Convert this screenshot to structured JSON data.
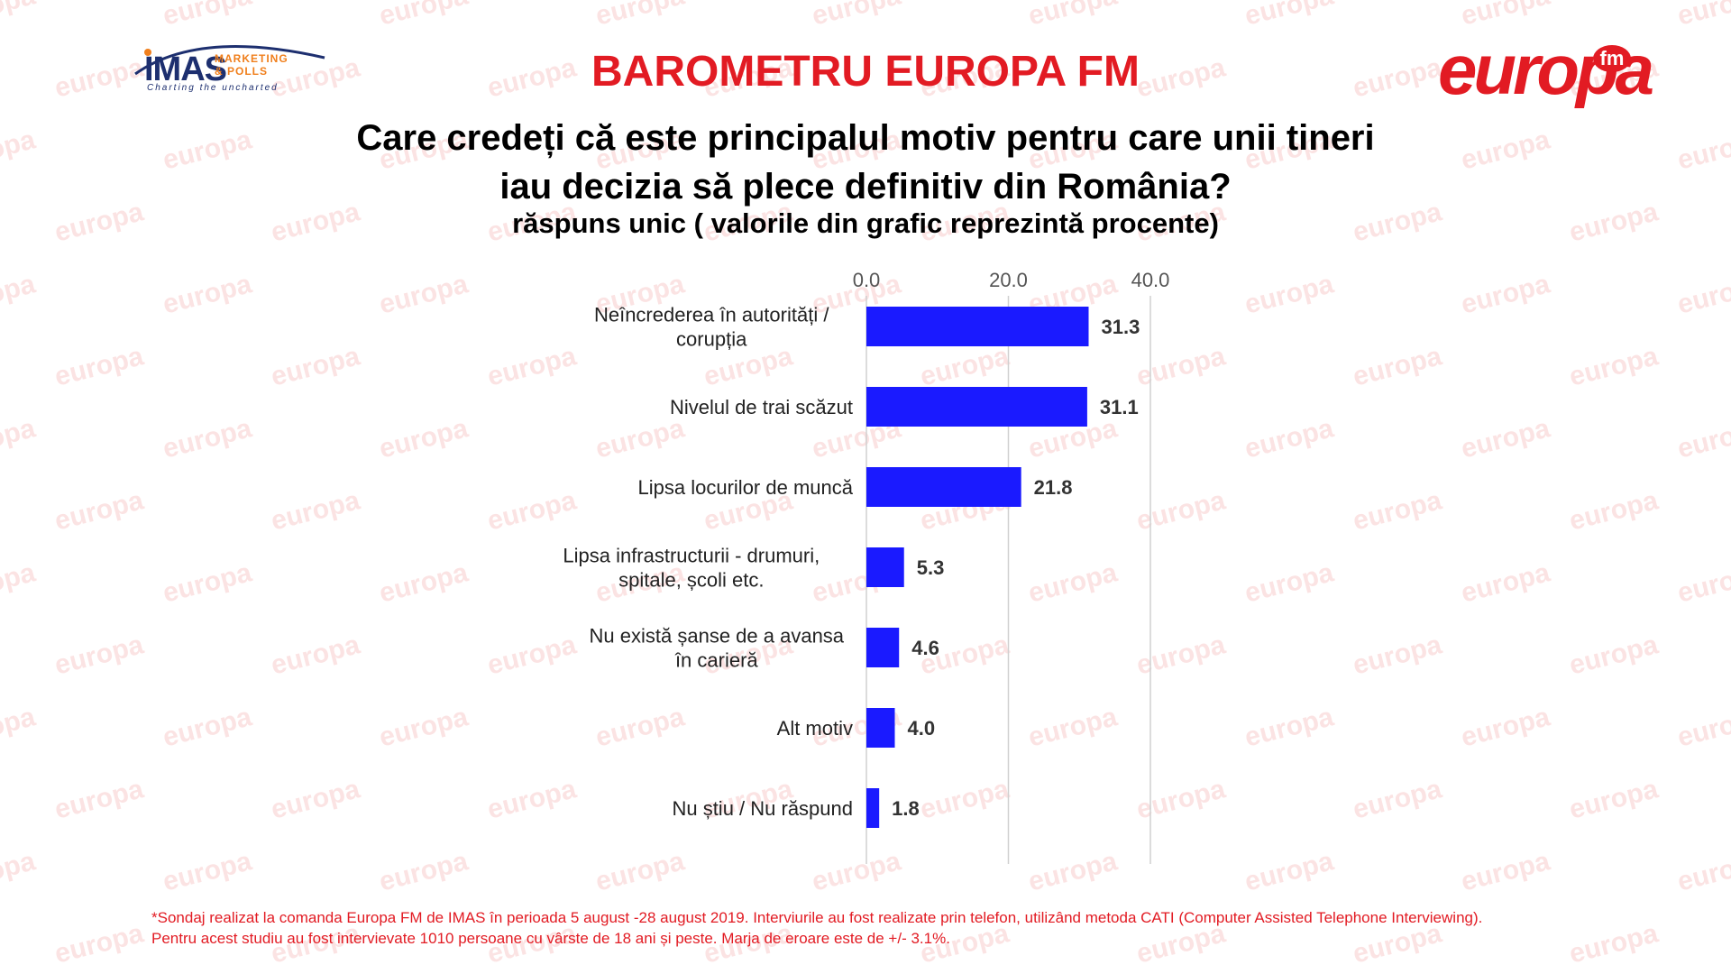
{
  "header": {
    "title": "BAROMETRU EUROPA FM"
  },
  "logos": {
    "imas": {
      "name": "IMAS",
      "line1": "MARKETING",
      "line2": "& POLLS",
      "tagline": "Charting the uncharted"
    },
    "europa": {
      "name": "europa",
      "badge": "fm"
    }
  },
  "watermark": {
    "text": "europa"
  },
  "question": {
    "line1": "Care credeți că este principalul motiv pentru care unii tineri",
    "line2": "iau decizia să plece definitiv din România?",
    "subtitle": "răspuns unic ( valorile din grafic reprezintă procente)"
  },
  "chart_data": {
    "type": "bar",
    "orientation": "horizontal",
    "categories": [
      [
        "Neîncrederea în autorități /",
        "corupția"
      ],
      [
        "Nivelul de trai scăzut"
      ],
      [
        "Lipsa locurilor de muncă"
      ],
      [
        "Lipsa infrastructurii - drumuri,",
        "spitale, școli etc."
      ],
      [
        "Nu există șanse de a avansa",
        "în carieră"
      ],
      [
        "Alt motiv"
      ],
      [
        "Nu știu / Nu răspund"
      ]
    ],
    "values": [
      31.3,
      31.1,
      21.8,
      5.3,
      4.6,
      4.0,
      1.8
    ],
    "value_labels": [
      "31.3",
      "31.1",
      "21.8",
      "5.3",
      "4.6",
      "4.0",
      "1.8"
    ],
    "xlim": [
      0,
      40
    ],
    "ticks": [
      "0.0",
      "20.0",
      "40.0"
    ],
    "tick_values": [
      0,
      20,
      40
    ],
    "xaxis_position": "top",
    "grid": true,
    "bar_color": "#1a1aff"
  },
  "footnote": {
    "line1": "*Sondaj realizat la comanda Europa FM de IMAS în perioada 5 august -28 august 2019. Interviurile au fost realizate prin telefon, utilizând metoda CATI (Computer Assisted Telephone Interviewing).",
    "line2": "Pentru acest studiu au fost intervievate 1010 persoane cu vârste de 18 ani și peste. Marja de eroare este de +/- 3.1%."
  }
}
